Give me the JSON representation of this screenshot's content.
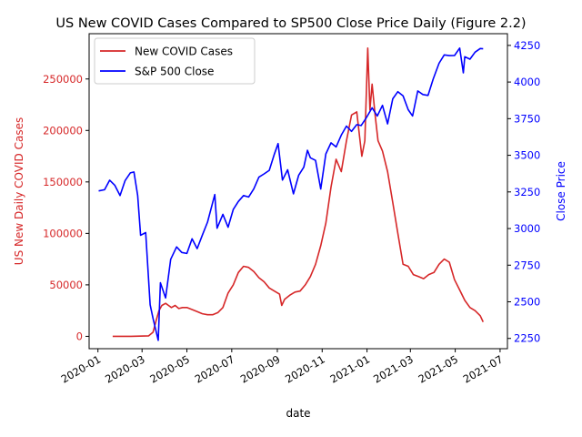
{
  "chart_data": {
    "type": "line",
    "title": "US New COVID Cases Compared to SP500 Close Price Daily (Figure 2.2)",
    "xlabel": "date",
    "ylabel_left": "US New Daily COVID Cases",
    "ylabel_right": "Close Price",
    "xlim": [
      "2019-12-20",
      "2021-07-11"
    ],
    "ylim_left": [
      -12000,
      294000
    ],
    "ylim_right": [
      2180,
      4330
    ],
    "x_ticks": [
      {
        "date": "2020-01-01",
        "label": "2020-01"
      },
      {
        "date": "2020-03-01",
        "label": "2020-03"
      },
      {
        "date": "2020-05-01",
        "label": "2020-05"
      },
      {
        "date": "2020-07-01",
        "label": "2020-07"
      },
      {
        "date": "2020-09-01",
        "label": "2020-09"
      },
      {
        "date": "2020-11-01",
        "label": "2020-11"
      },
      {
        "date": "2021-01-01",
        "label": "2021-01"
      },
      {
        "date": "2021-03-01",
        "label": "2021-03"
      },
      {
        "date": "2021-05-01",
        "label": "2021-05"
      },
      {
        "date": "2021-07-01",
        "label": "2021-07"
      }
    ],
    "y_ticks_left": [
      {
        "value": 0,
        "label": "0"
      },
      {
        "value": 50000,
        "label": "50000"
      },
      {
        "value": 100000,
        "label": "100000"
      },
      {
        "value": 150000,
        "label": "150000"
      },
      {
        "value": 200000,
        "label": "200000"
      },
      {
        "value": 250000,
        "label": "250000"
      }
    ],
    "y_ticks_right": [
      {
        "value": 2250,
        "label": "2250"
      },
      {
        "value": 2500,
        "label": "2500"
      },
      {
        "value": 2750,
        "label": "2750"
      },
      {
        "value": 3000,
        "label": "3000"
      },
      {
        "value": 3250,
        "label": "3250"
      },
      {
        "value": 3500,
        "label": "3500"
      },
      {
        "value": 3750,
        "label": "3750"
      },
      {
        "value": 4000,
        "label": "4000"
      },
      {
        "value": 4250,
        "label": "4250"
      }
    ],
    "legend_position": "top-left",
    "grid": false,
    "series": [
      {
        "name": "New COVID Cases",
        "axis": "left",
        "color": "#d62728",
        "x": [
          "2020-01-21",
          "2020-02-15",
          "2020-03-10",
          "2020-03-16",
          "2020-03-20",
          "2020-03-24",
          "2020-03-28",
          "2020-04-02",
          "2020-04-06",
          "2020-04-10",
          "2020-04-15",
          "2020-04-20",
          "2020-04-25",
          "2020-05-01",
          "2020-05-08",
          "2020-05-15",
          "2020-05-22",
          "2020-05-29",
          "2020-06-05",
          "2020-06-12",
          "2020-06-19",
          "2020-06-26",
          "2020-07-03",
          "2020-07-10",
          "2020-07-17",
          "2020-07-24",
          "2020-07-31",
          "2020-08-07",
          "2020-08-14",
          "2020-08-21",
          "2020-08-28",
          "2020-09-04",
          "2020-09-07",
          "2020-09-11",
          "2020-09-18",
          "2020-09-25",
          "2020-10-02",
          "2020-10-09",
          "2020-10-16",
          "2020-10-23",
          "2020-10-30",
          "2020-11-06",
          "2020-11-13",
          "2020-11-20",
          "2020-11-27",
          "2020-12-04",
          "2020-12-11",
          "2020-12-18",
          "2020-12-25",
          "2020-12-29",
          "2021-01-02",
          "2021-01-05",
          "2021-01-08",
          "2021-01-12",
          "2021-01-16",
          "2021-01-22",
          "2021-01-29",
          "2021-02-05",
          "2021-02-12",
          "2021-02-19",
          "2021-02-26",
          "2021-03-05",
          "2021-03-12",
          "2021-03-19",
          "2021-03-26",
          "2021-04-02",
          "2021-04-09",
          "2021-04-16",
          "2021-04-23",
          "2021-04-30",
          "2021-05-07",
          "2021-05-14",
          "2021-05-21",
          "2021-05-28",
          "2021-06-04",
          "2021-06-08"
        ],
        "values": [
          0,
          0,
          500,
          4000,
          15000,
          25000,
          30000,
          32000,
          30000,
          28000,
          30000,
          27000,
          28000,
          28000,
          26000,
          24000,
          22000,
          21000,
          21000,
          23000,
          28000,
          42000,
          50000,
          62000,
          68000,
          67000,
          63000,
          57000,
          53000,
          47000,
          44000,
          41000,
          30000,
          36000,
          40000,
          43000,
          44000,
          50000,
          58000,
          70000,
          88000,
          110000,
          145000,
          172000,
          160000,
          190000,
          215000,
          218000,
          175000,
          190000,
          280000,
          220000,
          245000,
          215000,
          190000,
          180000,
          160000,
          130000,
          100000,
          70000,
          68000,
          60000,
          58000,
          56000,
          60000,
          62000,
          70000,
          75000,
          72000,
          55000,
          45000,
          35000,
          28000,
          25000,
          20000,
          14000
        ]
      },
      {
        "name": "S&P 500 Close",
        "axis": "right",
        "color": "#0000ff",
        "x": [
          "2020-01-02",
          "2020-01-10",
          "2020-01-17",
          "2020-01-24",
          "2020-01-31",
          "2020-02-07",
          "2020-02-14",
          "2020-02-19",
          "2020-02-24",
          "2020-02-28",
          "2020-03-06",
          "2020-03-12",
          "2020-03-16",
          "2020-03-23",
          "2020-03-26",
          "2020-04-02",
          "2020-04-09",
          "2020-04-17",
          "2020-04-24",
          "2020-05-01",
          "2020-05-08",
          "2020-05-15",
          "2020-05-22",
          "2020-05-29",
          "2020-06-08",
          "2020-06-11",
          "2020-06-19",
          "2020-06-26",
          "2020-07-03",
          "2020-07-10",
          "2020-07-17",
          "2020-07-24",
          "2020-07-31",
          "2020-08-07",
          "2020-08-14",
          "2020-08-21",
          "2020-08-28",
          "2020-09-02",
          "2020-09-08",
          "2020-09-15",
          "2020-09-23",
          "2020-09-30",
          "2020-10-07",
          "2020-10-12",
          "2020-10-16",
          "2020-10-23",
          "2020-10-30",
          "2020-11-06",
          "2020-11-13",
          "2020-11-20",
          "2020-11-27",
          "2020-12-04",
          "2020-12-11",
          "2020-12-18",
          "2020-12-24",
          "2020-12-31",
          "2021-01-08",
          "2021-01-15",
          "2021-01-22",
          "2021-01-29",
          "2021-02-05",
          "2021-02-12",
          "2021-02-19",
          "2021-02-26",
          "2021-03-04",
          "2021-03-11",
          "2021-03-18",
          "2021-03-25",
          "2021-04-01",
          "2021-04-09",
          "2021-04-16",
          "2021-04-23",
          "2021-04-30",
          "2021-05-07",
          "2021-05-12",
          "2021-05-14",
          "2021-05-21",
          "2021-05-28",
          "2021-06-04",
          "2021-06-08"
        ],
        "values": [
          3257,
          3265,
          3330,
          3295,
          3225,
          3328,
          3380,
          3386,
          3225,
          2954,
          2972,
          2480,
          2386,
          2237,
          2630,
          2526,
          2790,
          2875,
          2837,
          2830,
          2930,
          2863,
          2955,
          3044,
          3232,
          3002,
          3097,
          3009,
          3130,
          3185,
          3225,
          3215,
          3271,
          3351,
          3373,
          3397,
          3508,
          3580,
          3331,
          3401,
          3237,
          3363,
          3419,
          3534,
          3483,
          3465,
          3270,
          3509,
          3585,
          3557,
          3638,
          3699,
          3663,
          3709,
          3703,
          3756,
          3824,
          3768,
          3841,
          3714,
          3886,
          3934,
          3906,
          3811,
          3768,
          3939,
          3915,
          3909,
          4019,
          4128,
          4185,
          4180,
          4181,
          4232,
          4063,
          4173,
          4156,
          4204,
          4229,
          4227
        ]
      }
    ]
  }
}
